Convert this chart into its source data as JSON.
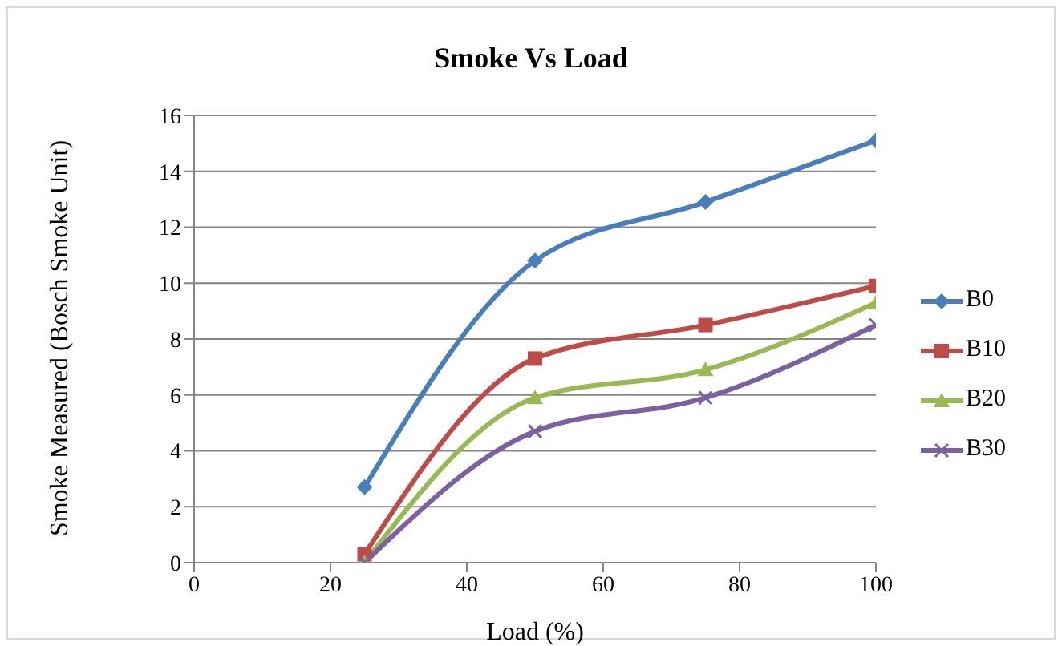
{
  "chart_data": {
    "type": "line",
    "title": "Smoke Vs Load",
    "xlabel": "Load (%)",
    "ylabel": "Smoke Measured (Bosch Smoke Unit)",
    "x": [
      25,
      50,
      75,
      100
    ],
    "series": [
      {
        "name": "B0",
        "color": "#4a7ebb",
        "marker": "diamond",
        "values": [
          2.7,
          10.8,
          12.9,
          15.1
        ]
      },
      {
        "name": "B10",
        "color": "#be4b48",
        "marker": "square",
        "values": [
          0.3,
          7.3,
          8.5,
          9.9
        ]
      },
      {
        "name": "B20",
        "color": "#98b954",
        "marker": "triangle",
        "values": [
          0,
          5.9,
          6.9,
          9.3
        ]
      },
      {
        "name": "B30",
        "color": "#7d60a0",
        "marker": "cross",
        "values": [
          0,
          4.7,
          5.9,
          8.5
        ]
      }
    ],
    "xlim": [
      0,
      100
    ],
    "xticks": [
      0,
      20,
      40,
      60,
      80,
      100
    ],
    "ylim": [
      0,
      16
    ],
    "yticks": [
      0,
      2,
      4,
      6,
      8,
      10,
      12,
      14,
      16
    ],
    "grid": "y",
    "legend": "right"
  }
}
